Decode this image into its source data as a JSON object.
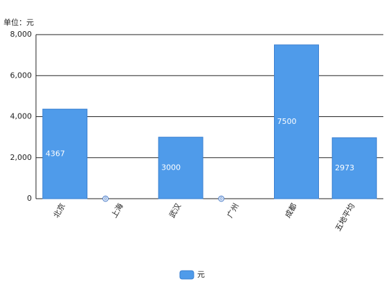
{
  "chart_data": {
    "type": "bar",
    "unit_label": "单位：元",
    "categories": [
      "北京",
      "上海",
      "武汉",
      "广州",
      "成都",
      "五地平均"
    ],
    "series": [
      {
        "name": "元",
        "color": "#4f9bea",
        "values": [
          4367,
          0,
          3000,
          0,
          7500,
          2973
        ]
      }
    ],
    "ylim": [
      0,
      8000
    ],
    "yticks": [
      0,
      {
        "value": 2000,
        "label": "2,000"
      },
      {
        "value": 4000,
        "label": "4,000"
      },
      {
        "value": 6000,
        "label": "6,000"
      },
      {
        "value": 8000,
        "label": "8,000"
      }
    ],
    "grid": true,
    "legend": "bottom"
  }
}
